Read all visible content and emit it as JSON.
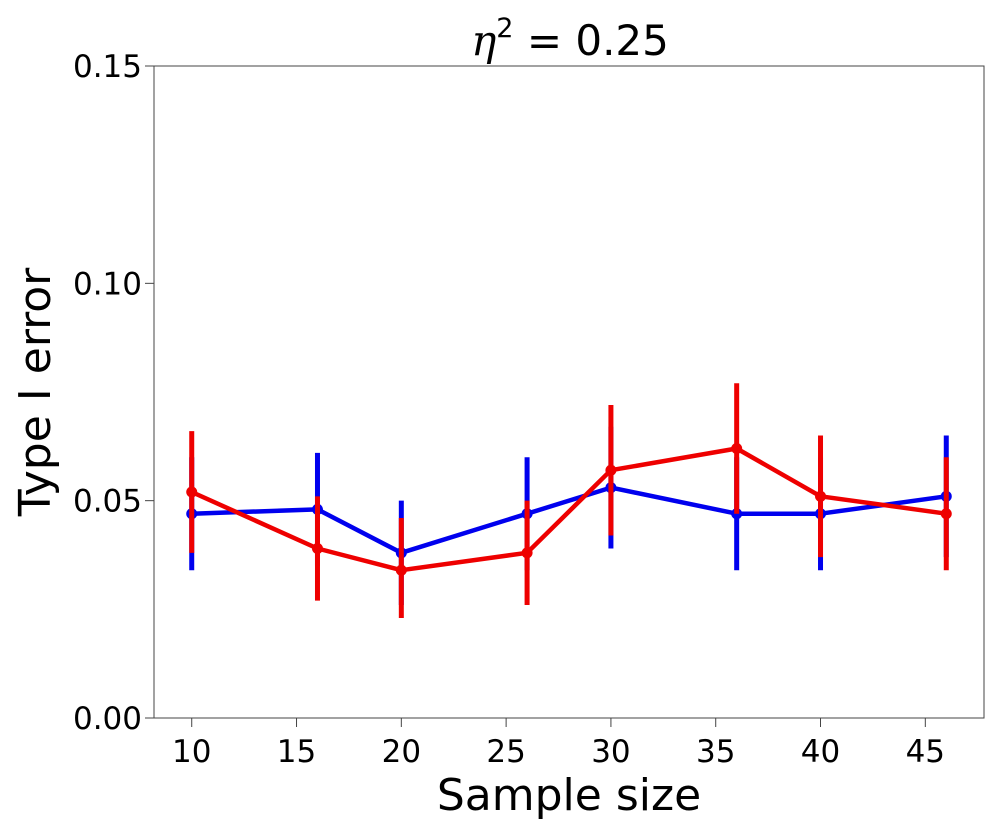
{
  "chart_data": {
    "type": "line",
    "title": {
      "symbol": "η",
      "exponent": "2",
      "rest": " = 0.25"
    },
    "xlabel": "Sample size",
    "ylabel": "Type I error",
    "xlim": [
      8.2,
      47.8
    ],
    "ylim": [
      0.0,
      0.15
    ],
    "xticks": [
      10,
      15,
      20,
      25,
      30,
      35,
      40,
      45
    ],
    "yticks": [
      0.0,
      0.05,
      0.1,
      0.15
    ],
    "ytick_labels": [
      "0.00",
      "0.05",
      "0.10",
      "0.15"
    ],
    "x": [
      10,
      16,
      20,
      26,
      30,
      36,
      40,
      46
    ],
    "series": [
      {
        "name": "blue",
        "color": "#0000ee",
        "values": [
          0.047,
          0.048,
          0.038,
          0.047,
          0.053,
          0.047,
          0.047,
          0.051
        ],
        "err_low": [
          0.034,
          0.035,
          0.026,
          0.034,
          0.039,
          0.034,
          0.034,
          0.037
        ],
        "err_high": [
          0.06,
          0.061,
          0.05,
          0.06,
          0.067,
          0.06,
          0.06,
          0.065
        ]
      },
      {
        "name": "red",
        "color": "#ee0000",
        "values": [
          0.052,
          0.039,
          0.034,
          0.038,
          0.057,
          0.062,
          0.051,
          0.047
        ],
        "err_low": [
          0.038,
          0.027,
          0.023,
          0.026,
          0.042,
          0.047,
          0.037,
          0.034
        ],
        "err_high": [
          0.066,
          0.051,
          0.046,
          0.05,
          0.072,
          0.077,
          0.065,
          0.06
        ]
      }
    ]
  }
}
